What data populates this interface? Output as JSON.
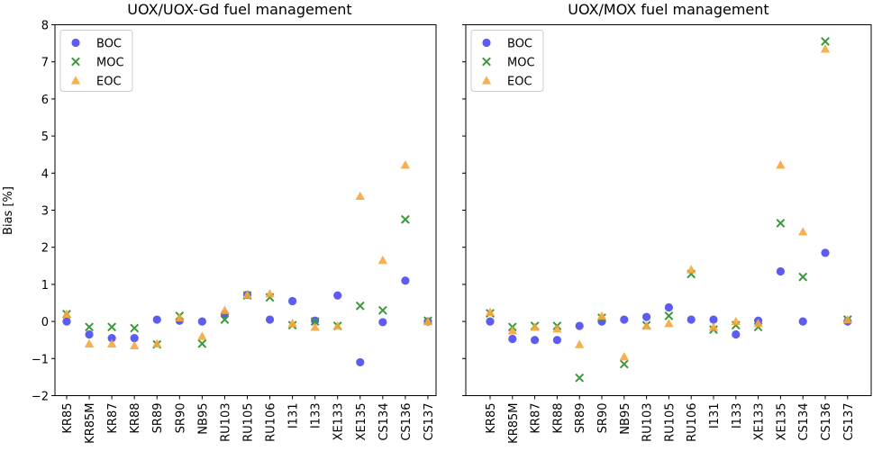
{
  "chart_data": [
    {
      "type": "scatter",
      "title": "UOX/UOX-Gd fuel management",
      "xlabel": "",
      "ylabel": "Bias [%]",
      "ylim": [
        -2,
        8
      ],
      "yticks": [
        -2,
        -1,
        0,
        1,
        2,
        3,
        4,
        5,
        6,
        7,
        8
      ],
      "ytick_labels": [
        "−2",
        "−1",
        "0",
        "1",
        "2",
        "3",
        "4",
        "5",
        "6",
        "7",
        "8"
      ],
      "legend_position": "top-left",
      "categories": [
        "KR85",
        "KR85M",
        "KR87",
        "KR88",
        "SR89",
        "SR90",
        "NB95",
        "RU103",
        "RU105",
        "RU106",
        "I131",
        "I133",
        "XE133",
        "XE135",
        "CS134",
        "CS136",
        "CS137"
      ],
      "series": [
        {
          "name": "BOC",
          "marker": "circle",
          "color": "#4a4af0",
          "values": [
            0.0,
            -0.35,
            -0.45,
            -0.45,
            0.05,
            0.02,
            0.0,
            0.2,
            0.72,
            0.05,
            0.55,
            0.02,
            0.7,
            -1.1,
            -0.02,
            1.1,
            0.0
          ]
        },
        {
          "name": "MOC",
          "marker": "x",
          "color": "#3a9a3a",
          "values": [
            0.2,
            -0.15,
            -0.15,
            -0.18,
            -0.62,
            0.15,
            -0.6,
            0.05,
            0.7,
            0.65,
            -0.1,
            0.0,
            -0.12,
            0.42,
            0.3,
            2.75,
            0.02
          ]
        },
        {
          "name": "EOC",
          "marker": "triangle",
          "color": "#f5a73e",
          "values": [
            0.2,
            -0.6,
            -0.6,
            -0.65,
            -0.6,
            0.1,
            -0.4,
            0.3,
            0.72,
            0.75,
            -0.05,
            -0.15,
            -0.12,
            3.38,
            1.65,
            4.22,
            0.0
          ]
        }
      ]
    },
    {
      "type": "scatter",
      "title": "UOX/MOX fuel management",
      "xlabel": "",
      "ylabel": "",
      "ylim": [
        -2,
        8
      ],
      "legend_position": "top-left",
      "categories": [
        "KR85",
        "KR85M",
        "KR87",
        "KR88",
        "SR89",
        "SR90",
        "NB95",
        "RU103",
        "RU105",
        "RU106",
        "I131",
        "I133",
        "XE133",
        "XE135",
        "CS134",
        "CS136",
        "CS137"
      ],
      "series": [
        {
          "name": "BOC",
          "marker": "circle",
          "color": "#4a4af0",
          "values": [
            0.0,
            -0.47,
            -0.5,
            -0.5,
            -0.12,
            0.0,
            0.05,
            0.12,
            0.38,
            0.05,
            0.05,
            -0.35,
            0.02,
            1.35,
            0.0,
            1.85,
            0.0
          ]
        },
        {
          "name": "MOC",
          "marker": "x",
          "color": "#3a9a3a",
          "values": [
            0.22,
            -0.15,
            -0.12,
            -0.12,
            -1.52,
            0.1,
            -1.15,
            -0.1,
            0.15,
            1.28,
            -0.22,
            -0.1,
            -0.15,
            2.65,
            1.2,
            7.55,
            0.05
          ]
        },
        {
          "name": "EOC",
          "marker": "triangle",
          "color": "#f5a73e",
          "values": [
            0.25,
            -0.25,
            -0.15,
            -0.2,
            -0.62,
            0.15,
            -0.95,
            -0.12,
            -0.05,
            1.4,
            -0.15,
            0.0,
            -0.05,
            4.22,
            2.42,
            7.35,
            0.05
          ]
        }
      ]
    }
  ]
}
